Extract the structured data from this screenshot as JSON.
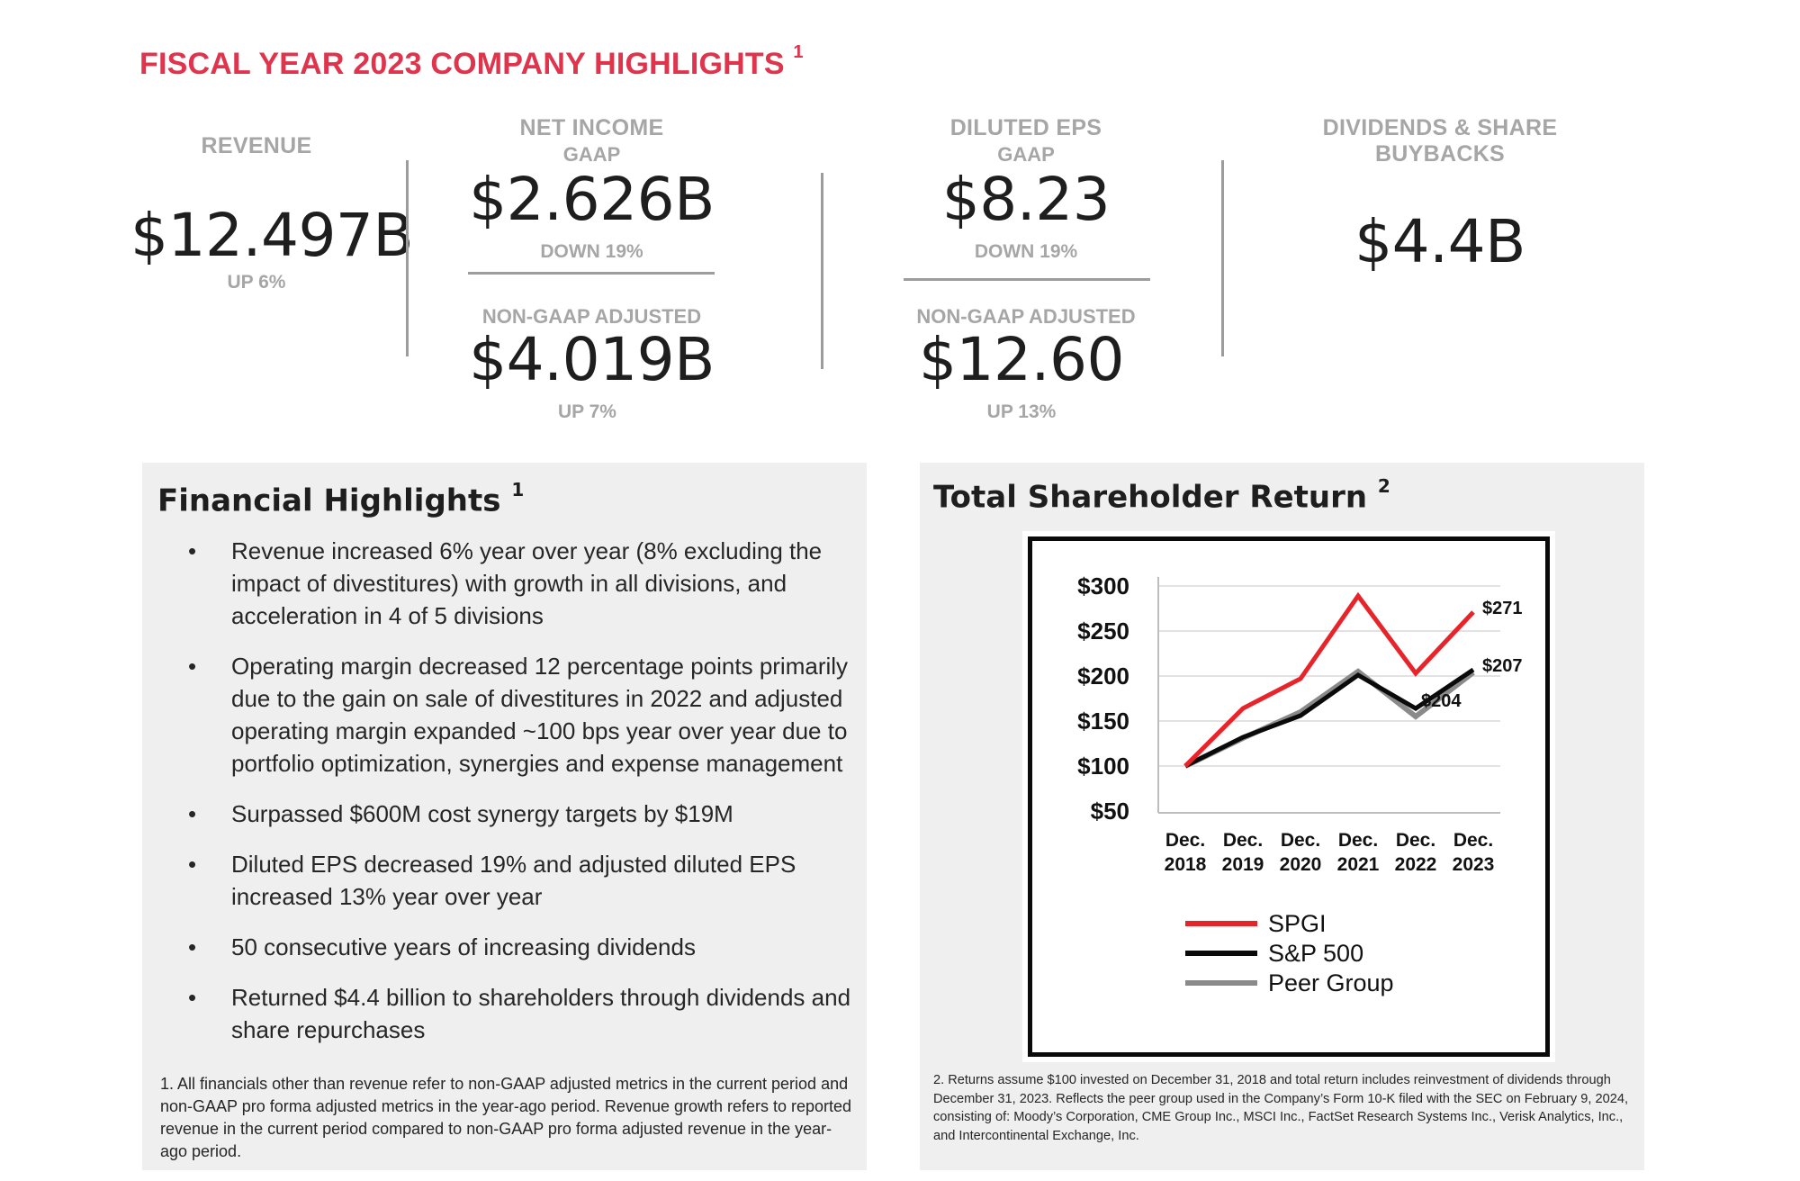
{
  "title": {
    "text": "FISCAL YEAR 2023 COMPANY HIGHLIGHTS",
    "sup": "1"
  },
  "metrics": {
    "revenue": {
      "label": "REVENUE",
      "value": "$12.497B",
      "change": "UP 6%"
    },
    "net_income": {
      "label": "NET INCOME",
      "gaap_label": "GAAP",
      "gaap_value": "$2.626B",
      "gaap_change": "DOWN 19%",
      "adj_label": "NON-GAAP ADJUSTED",
      "adj_value": "$4.019B",
      "adj_change": "UP 7%"
    },
    "diluted_eps": {
      "label": "DILUTED EPS",
      "gaap_label": "GAAP",
      "gaap_value": "$8.23",
      "gaap_change": "DOWN 19%",
      "adj_label": "NON-GAAP ADJUSTED",
      "adj_value": "$12.60",
      "adj_change": "UP 13%"
    },
    "dividends": {
      "label": "DIVIDENDS & SHARE BUYBACKS",
      "value": "$4.4B"
    }
  },
  "financial_highlights": {
    "title": "Financial Highlights",
    "sup": "1",
    "bullet_char": "•",
    "items": [
      "Revenue increased 6% year over year (8% excluding the impact of divestitures) with growth in all divisions, and acceleration in 4 of 5 divisions",
      "Operating margin decreased 12 percentage points primarily due to the gain on sale of divestitures in 2022 and adjusted operating margin expanded ~100 bps year over year due to portfolio optimization, synergies and expense management",
      "Surpassed $600M cost synergy targets by $19M",
      "Diluted EPS decreased 19% and adjusted diluted EPS increased 13% year over year",
      "50 consecutive years of increasing dividends",
      "Returned $4.4 billion to shareholders through dividends and share repurchases"
    ],
    "footnote": "1. All financials other than revenue refer to non-GAAP adjusted metrics in the current period and non-GAAP pro forma adjusted metrics in the year-ago period. Revenue growth refers to reported revenue in the current period compared to non-GAAP pro forma adjusted revenue in the year-ago period."
  },
  "tsr": {
    "title": "Total Shareholder Return",
    "sup": "2",
    "footnote": "2. Returns assume $100 invested on December 31, 2018 and total return includes reinvestment of dividends through December 31, 2023. Reflects the peer group used in the Company’s Form 10-K filed with the SEC on February 9, 2024, consisting of: Moody’s Corporation, CME Group Inc., MSCI Inc., FactSet Research Systems Inc., Verisk Analytics, Inc., and Intercontinental Exchange, Inc."
  },
  "chart_data": {
    "type": "line",
    "title": "",
    "xlabel": "",
    "ylabel": "",
    "ylim": [
      50,
      300
    ],
    "yticks": [
      300,
      250,
      200,
      150,
      100,
      50
    ],
    "ytick_labels": [
      "$300",
      "$250",
      "$200",
      "$150",
      "$100",
      "$50"
    ],
    "categories": [
      [
        "Dec.",
        "2018"
      ],
      [
        "Dec.",
        "2019"
      ],
      [
        "Dec.",
        "2020"
      ],
      [
        "Dec.",
        "2021"
      ],
      [
        "Dec.",
        "2022"
      ],
      [
        "Dec.",
        "2023"
      ]
    ],
    "grid": true,
    "series": [
      {
        "name": "SPGI",
        "color": "#e8242b",
        "values": [
          100,
          164,
          197,
          289,
          203,
          271
        ],
        "end_label": "$271"
      },
      {
        "name": "S&P 500",
        "color": "#0a0a0a",
        "values": [
          100,
          132,
          156,
          201,
          164,
          207
        ],
        "end_label": "$207"
      },
      {
        "name": "Peer Group",
        "color": "#8a8a8a",
        "values": [
          100,
          131,
          160,
          205,
          155,
          204
        ],
        "end_label": "$204"
      }
    ],
    "legend_position": "bottom"
  }
}
